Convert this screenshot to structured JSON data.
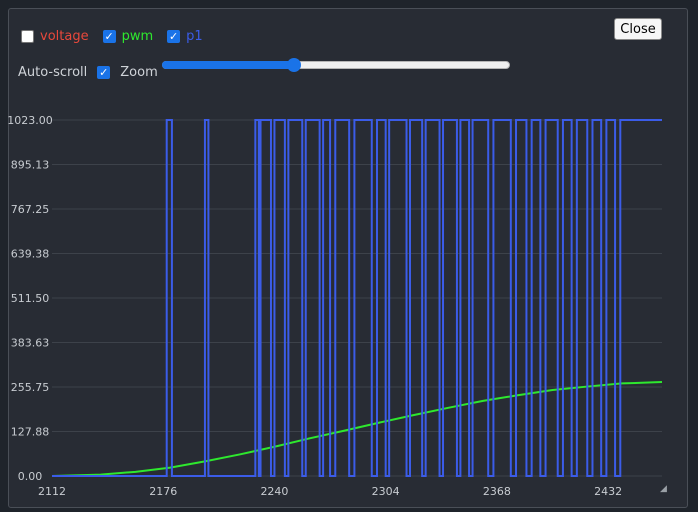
{
  "controls": {
    "series_toggles": [
      {
        "label": "voltage",
        "checked": false,
        "color": "#e8483b"
      },
      {
        "label": "pwm",
        "checked": true,
        "color": "#2ee82e"
      },
      {
        "label": "p1",
        "checked": true,
        "color": "#3b5ce8"
      }
    ],
    "close_label": "Close",
    "autoscroll_label": "Auto-scroll",
    "autoscroll_checked": true,
    "zoom_label": "Zoom",
    "zoom_level": 0.38
  },
  "chart_data": {
    "type": "line",
    "title": "",
    "xlabel": "",
    "ylabel": "",
    "xlim": [
      2112,
      2463
    ],
    "ylim": [
      0,
      1023
    ],
    "x_ticks": [
      2112,
      2176,
      2240,
      2304,
      2368,
      2432
    ],
    "y_ticks": [
      "0.00",
      "127.88",
      "255.75",
      "383.63",
      "511.50",
      "639.38",
      "767.25",
      "895.13",
      "1023.00"
    ],
    "grid": true,
    "series": [
      {
        "name": "pwm",
        "color": "#2ee82e",
        "x": [
          2112,
          2140,
          2160,
          2180,
          2200,
          2220,
          2240,
          2260,
          2280,
          2300,
          2320,
          2340,
          2360,
          2380,
          2400,
          2420,
          2440,
          2463
        ],
        "y": [
          0,
          4,
          12,
          24,
          42,
          62,
          84,
          108,
          130,
          153,
          175,
          196,
          216,
          232,
          247,
          257,
          266,
          270
        ]
      },
      {
        "name": "p1",
        "color": "#3b5ce8",
        "steps": [
          [
            2112,
            0
          ],
          [
            2178,
            1023
          ],
          [
            2181,
            0
          ],
          [
            2200,
            1023
          ],
          [
            2202,
            0
          ],
          [
            2229,
            1023
          ],
          [
            2231,
            0
          ],
          [
            2232,
            1023
          ],
          [
            2238,
            0
          ],
          [
            2240,
            1023
          ],
          [
            2246,
            0
          ],
          [
            2248,
            1023
          ],
          [
            2256,
            0
          ],
          [
            2258,
            1023
          ],
          [
            2266,
            0
          ],
          [
            2268,
            1023
          ],
          [
            2272,
            0
          ],
          [
            2275,
            1023
          ],
          [
            2283,
            0
          ],
          [
            2286,
            1023
          ],
          [
            2296,
            0
          ],
          [
            2299,
            1023
          ],
          [
            2304,
            0
          ],
          [
            2306,
            1023
          ],
          [
            2316,
            0
          ],
          [
            2318,
            1023
          ],
          [
            2325,
            0
          ],
          [
            2327,
            1023
          ],
          [
            2335,
            0
          ],
          [
            2337,
            1023
          ],
          [
            2345,
            0
          ],
          [
            2347,
            1023
          ],
          [
            2352,
            0
          ],
          [
            2354,
            1023
          ],
          [
            2363,
            0
          ],
          [
            2366,
            1023
          ],
          [
            2376,
            0
          ],
          [
            2379,
            1023
          ],
          [
            2385,
            0
          ],
          [
            2388,
            1023
          ],
          [
            2393,
            0
          ],
          [
            2396,
            1023
          ],
          [
            2403,
            0
          ],
          [
            2406,
            1023
          ],
          [
            2411,
            0
          ],
          [
            2414,
            1023
          ],
          [
            2420,
            0
          ],
          [
            2423,
            1023
          ],
          [
            2428,
            0
          ],
          [
            2431,
            1023
          ],
          [
            2436,
            0
          ],
          [
            2439,
            1023
          ],
          [
            2463,
            1023
          ]
        ]
      }
    ]
  }
}
